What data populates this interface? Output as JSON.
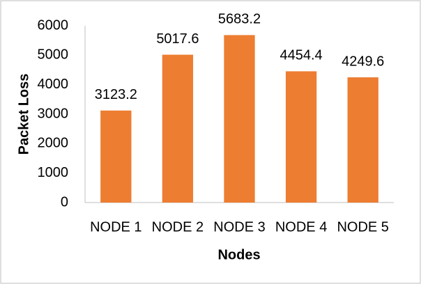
{
  "chart_data": {
    "type": "bar",
    "x_label": "Nodes",
    "y_label": "Packet Loss",
    "categories": [
      "NODE 1",
      "NODE 2",
      "NODE 3",
      "NODE 4",
      "NODE 5"
    ],
    "values": [
      3123.2,
      5017.6,
      5683.2,
      4454.4,
      4249.6
    ],
    "color": "#ed7d31",
    "ylim": [
      0,
      6000
    ],
    "yticks": [
      0,
      1000,
      2000,
      3000,
      4000,
      5000,
      6000
    ],
    "grid": false,
    "data_labels": true
  }
}
